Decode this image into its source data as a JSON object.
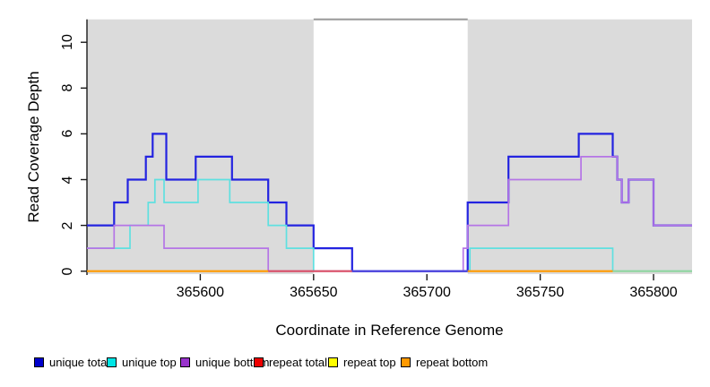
{
  "chart_data": {
    "type": "line",
    "subtype": "step",
    "title": "",
    "xlabel": "Coordinate in Reference Genome",
    "ylabel": "Read Coverage Depth",
    "xlim": [
      365550,
      365817
    ],
    "ylim": [
      0,
      11.1
    ],
    "x_ticks": [
      365600,
      365650,
      365700,
      365750,
      365800
    ],
    "y_ticks": [
      0,
      2,
      4,
      6,
      8,
      10
    ],
    "grid": false,
    "legend_position": "bottom",
    "plot_background": "#ffffff",
    "shaded_regions": [
      {
        "name": "left-coverage-region",
        "x0": 365550,
        "x1": 365650,
        "color": "#dbdbdb"
      },
      {
        "name": "right-coverage-region",
        "x0": 365718,
        "x1": 365817,
        "color": "#dbdbdb"
      }
    ],
    "gap_top_line": {
      "y": 11,
      "x0": 365650,
      "x1": 365718,
      "color": "#979797"
    },
    "series": [
      {
        "name": "unique total",
        "color": "#2323e0",
        "width": 2.2,
        "steps": [
          [
            365550,
            2
          ],
          [
            365562,
            3
          ],
          [
            365568,
            4
          ],
          [
            365576,
            5
          ],
          [
            365579,
            6
          ],
          [
            365585,
            4
          ],
          [
            365598,
            5
          ],
          [
            365614,
            4
          ],
          [
            365630,
            3
          ],
          [
            365638,
            2
          ],
          [
            365650,
            1
          ],
          [
            365667,
            0
          ],
          [
            365718,
            3
          ],
          [
            365736,
            5
          ],
          [
            365767,
            6
          ],
          [
            365782,
            5
          ],
          [
            365784,
            4
          ],
          [
            365786,
            3
          ],
          [
            365789,
            4
          ],
          [
            365800,
            2
          ],
          [
            365817,
            2
          ]
        ]
      },
      {
        "name": "unique top",
        "color": "#5fe0e0",
        "width": 1.7,
        "steps": [
          [
            365550,
            1
          ],
          [
            365569,
            2
          ],
          [
            365577,
            3
          ],
          [
            365580,
            4
          ],
          [
            365584,
            3
          ],
          [
            365599,
            4
          ],
          [
            365613,
            3
          ],
          [
            365630,
            2
          ],
          [
            365638,
            1
          ],
          [
            365650,
            0
          ],
          [
            365719,
            1
          ],
          [
            365782,
            0
          ],
          [
            365817,
            0
          ]
        ]
      },
      {
        "name": "unique bottom",
        "color": "#b575e6",
        "width": 1.7,
        "steps": [
          [
            365550,
            1
          ],
          [
            365562,
            2
          ],
          [
            365584,
            1
          ],
          [
            365630,
            0
          ],
          [
            365716,
            1
          ],
          [
            365718,
            2
          ],
          [
            365736,
            4
          ],
          [
            365768,
            5
          ],
          [
            365784,
            4
          ],
          [
            365786,
            3
          ],
          [
            365789,
            4
          ],
          [
            365800,
            2
          ],
          [
            365817,
            2
          ]
        ]
      }
    ],
    "baseline_segments": [
      {
        "name": "baseline-orange-left",
        "x0": 365550,
        "x1": 365630,
        "color": "#ff9900"
      },
      {
        "name": "baseline-crimson",
        "x0": 365630,
        "x1": 365667,
        "color": "#d84c66"
      },
      {
        "name": "baseline-indigo-gap",
        "x0": 365667,
        "x1": 365718,
        "color": "#4a42dc"
      },
      {
        "name": "baseline-orange-right",
        "x0": 365718,
        "x1": 365782,
        "color": "#ff9900"
      },
      {
        "name": "baseline-green-right",
        "x0": 365782,
        "x1": 365817,
        "color": "#8fd6a0"
      }
    ],
    "legend": [
      {
        "label": "unique total",
        "color": "#0000cc"
      },
      {
        "label": "unique top",
        "color": "#00e5e5"
      },
      {
        "label": "unique bottom",
        "color": "#9933cc"
      },
      {
        "label": "repeat total",
        "color": "#ee0000"
      },
      {
        "label": "repeat top",
        "color": "#ffff00"
      },
      {
        "label": "repeat bottom",
        "color": "#ff9900"
      }
    ]
  }
}
